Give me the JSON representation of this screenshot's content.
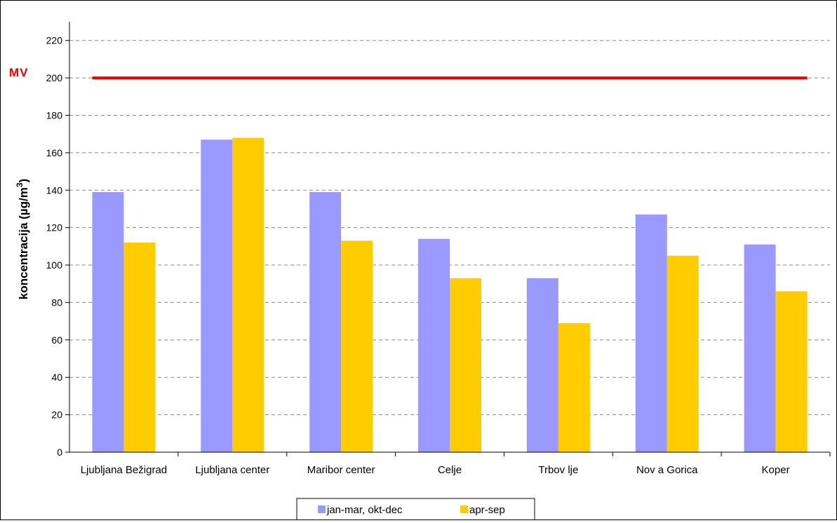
{
  "chart_data": {
    "type": "bar",
    "categories": [
      "Ljubljana Bežigrad",
      "Ljubljana center",
      "Maribor center",
      "Celje",
      "Trbov lje",
      "Nov a Gorica",
      "Koper"
    ],
    "series": [
      {
        "name": "jan-mar, okt-dec",
        "color": "#9999ff",
        "values": [
          139,
          167,
          139,
          114,
          93,
          127,
          111
        ]
      },
      {
        "name": "apr-sep",
        "color": "#ffcc00",
        "values": [
          112,
          168,
          113,
          93,
          69,
          105,
          86
        ]
      }
    ],
    "ylabel_main": "koncentracija (µg/m",
    "ylabel_sup": "3",
    "ylabel_close": ")",
    "xlabel": "",
    "ylim": [
      0,
      230
    ],
    "yticks": [
      0,
      20,
      40,
      60,
      80,
      100,
      120,
      140,
      160,
      180,
      200,
      220
    ],
    "grid": true,
    "legend": "bottom",
    "limit_line": {
      "label": "MV",
      "value": 200,
      "color": "#ee0000"
    }
  }
}
